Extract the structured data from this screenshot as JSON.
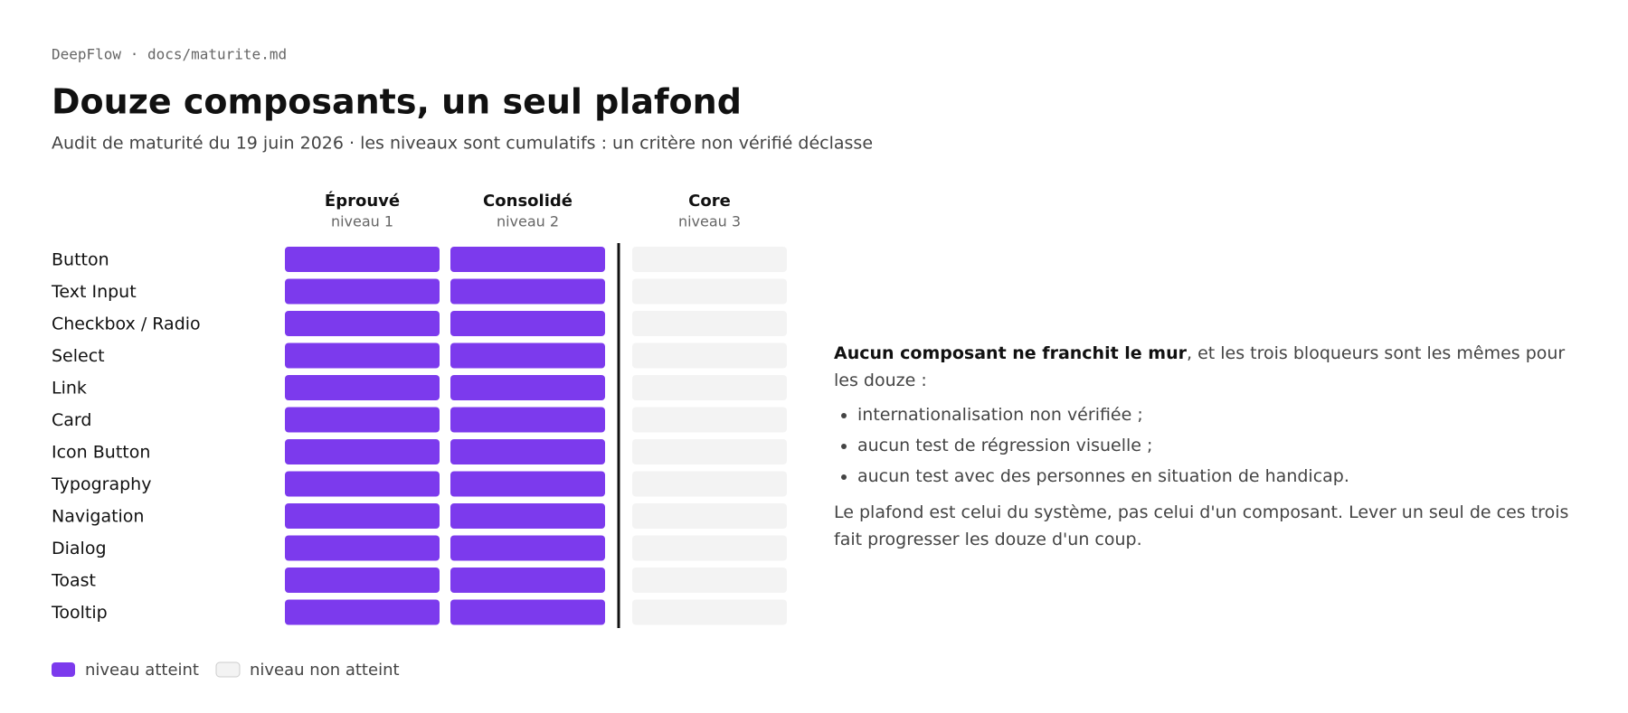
{
  "header": {
    "breadcrumb": "DeepFlow · docs/maturite.md",
    "title": "Douze composants, un seul plafond",
    "subtitle": "Audit de maturité du 19 juin 2026 · les niveaux sont cumulatifs : un critère non vérifié déclasse"
  },
  "chart_data": {
    "type": "matrix",
    "categories": [
      "Button",
      "Text Input",
      "Checkbox / Radio",
      "Select",
      "Link",
      "Card",
      "Icon Button",
      "Typography",
      "Navigation",
      "Dialog",
      "Toast",
      "Tooltip"
    ],
    "series": [
      {
        "name": "Éprouvé",
        "level": "niveau 1",
        "values": [
          1,
          1,
          1,
          1,
          1,
          1,
          1,
          1,
          1,
          1,
          1,
          1
        ]
      },
      {
        "name": "Consolidé",
        "level": "niveau 2",
        "values": [
          1,
          1,
          1,
          1,
          1,
          1,
          1,
          1,
          1,
          1,
          1,
          1
        ]
      },
      {
        "name": "Core",
        "level": "niveau 3",
        "values": [
          0,
          0,
          0,
          0,
          0,
          0,
          0,
          0,
          0,
          0,
          0,
          0
        ]
      }
    ],
    "legend": {
      "reached": {
        "label": "niveau atteint",
        "color": "#7c3aed"
      },
      "not_reached": {
        "label": "niveau non atteint",
        "color": "#f3f3f3"
      }
    }
  },
  "note": {
    "lead": "Aucun composant ne franchit le mur",
    "text": ", et les trois bloqueurs sont les mêmes pour les douze :",
    "bullets": [
      "internationalisation non vérifiée ;",
      "aucun test de régression visuelle ;",
      "aucun test avec des personnes en situation de handicap."
    ],
    "conclusion": "Le plafond est celui du système, pas celui d'un composant. Lever un seul de ces trois fait progresser les douze d'un coup."
  }
}
